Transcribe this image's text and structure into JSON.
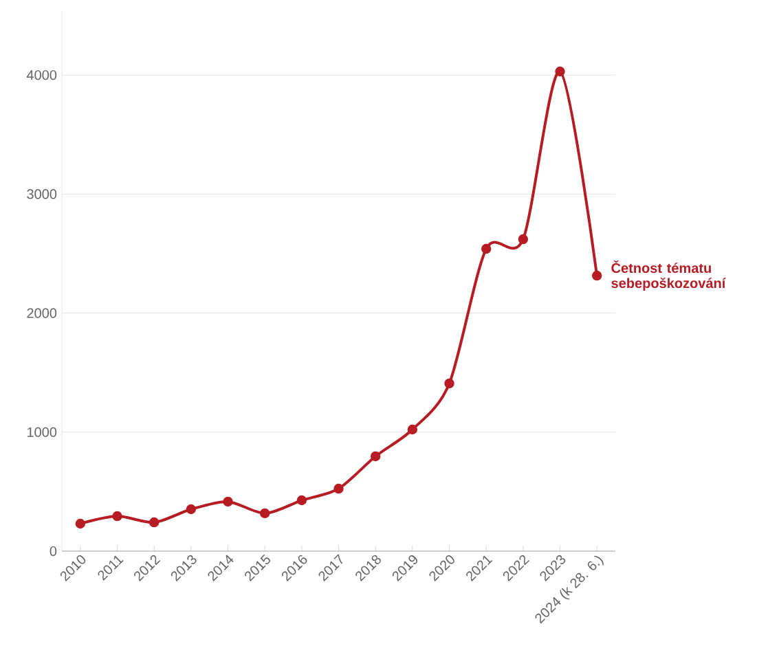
{
  "chart_data": {
    "type": "line",
    "categories": [
      "2010",
      "2011",
      "2012",
      "2013",
      "2014",
      "2015",
      "2016",
      "2017",
      "2018",
      "2019",
      "2020",
      "2021",
      "2022",
      "2023",
      "2024 (k 28. 6.)"
    ],
    "series": [
      {
        "name": "Četnost tématu sebepoškozování",
        "color": "#b71c24",
        "values": [
          231,
          294,
          242,
          352,
          416,
          318,
          427,
          525,
          797,
          1022,
          1409,
          2540,
          2621,
          4030,
          2315
        ]
      }
    ],
    "ylim": [
      0,
      4544
    ],
    "yticks": [
      0,
      1000,
      2000,
      3000,
      4000
    ],
    "grid": "y",
    "marker": "circle",
    "line_style": "solid"
  }
}
